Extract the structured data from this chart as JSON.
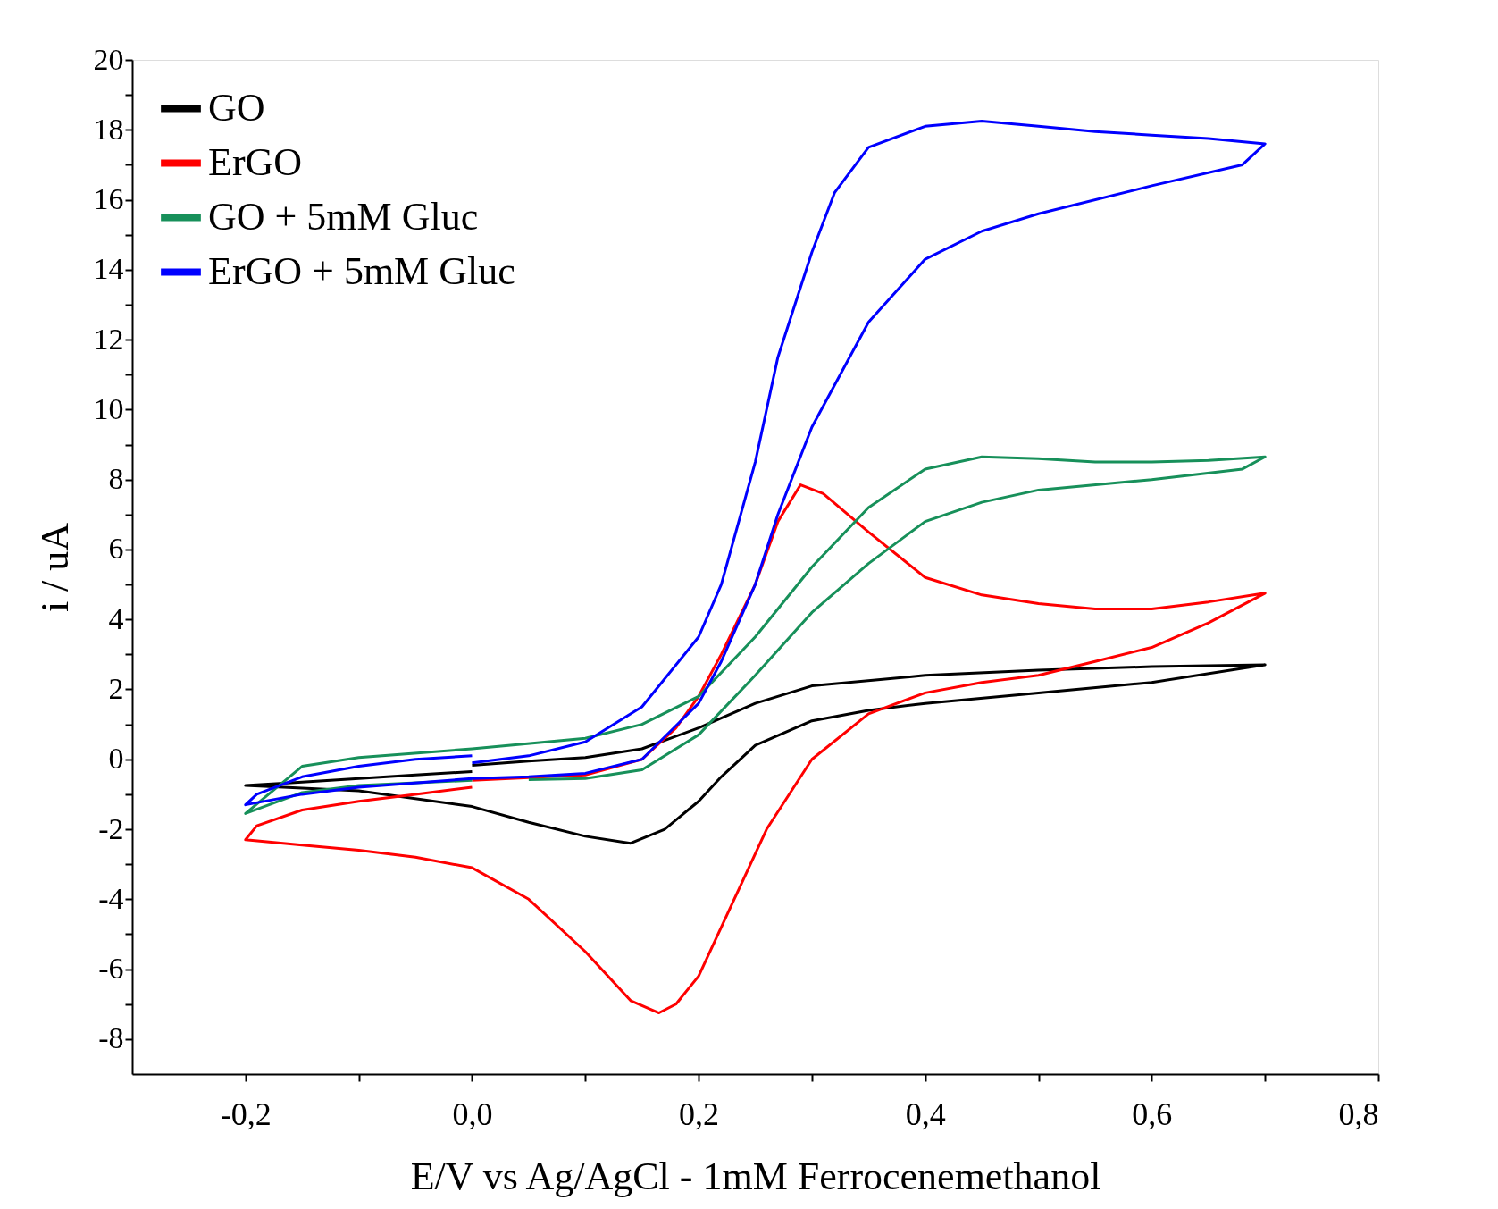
{
  "chart_data": {
    "type": "line",
    "xlabel": "E/V vs Ag/AgCl - 1mM Ferrocenemethanol",
    "ylabel": "i / uA",
    "xlim": [
      -0.3,
      0.8
    ],
    "ylim": [
      -9,
      20
    ],
    "xticks": [
      {
        "value": -0.2,
        "label": "-0,2"
      },
      {
        "value": -0.1,
        "label": null
      },
      {
        "value": 0.0,
        "label": "0,0"
      },
      {
        "value": 0.1,
        "label": null
      },
      {
        "value": 0.2,
        "label": "0,2"
      },
      {
        "value": 0.3,
        "label": null
      },
      {
        "value": 0.4,
        "label": "0,4"
      },
      {
        "value": 0.5,
        "label": null
      },
      {
        "value": 0.6,
        "label": "0,6"
      },
      {
        "value": 0.7,
        "label": null
      },
      {
        "value": 0.8,
        "label": "0,8"
      }
    ],
    "yticks": [
      -8,
      {
        "value": -7,
        "label": null
      },
      -6,
      {
        "value": -5,
        "label": null
      },
      -4,
      {
        "value": -3,
        "label": null
      },
      -2,
      {
        "value": -1,
        "label": null
      },
      0,
      {
        "value": 1,
        "label": null
      },
      2,
      {
        "value": 3,
        "label": null
      },
      4,
      {
        "value": 5,
        "label": null
      },
      6,
      {
        "value": 7,
        "label": null
      },
      8,
      {
        "value": 9,
        "label": null
      },
      10,
      {
        "value": 11,
        "label": null
      },
      12,
      {
        "value": 13,
        "label": null
      },
      14,
      {
        "value": 15,
        "label": null
      },
      16,
      {
        "value": 17,
        "label": null
      },
      18,
      {
        "value": 19,
        "label": null
      },
      20
    ],
    "grid": false,
    "legend": "top left",
    "marker": "none",
    "line_style": "solid",
    "series": [
      {
        "name": "GO",
        "color": "#000000",
        "x": [
          0.0,
          0.05,
          0.1,
          0.15,
          0.2,
          0.25,
          0.3,
          0.4,
          0.5,
          0.6,
          0.7,
          0.6,
          0.5,
          0.4,
          0.35,
          0.3,
          0.25,
          0.22,
          0.2,
          0.17,
          0.14,
          0.1,
          0.05,
          0.0,
          -0.1,
          -0.2,
          -0.15,
          -0.1,
          -0.05,
          0.0
        ],
        "values": [
          -0.17,
          -0.05,
          0.05,
          0.3,
          0.9,
          1.6,
          2.1,
          2.4,
          2.55,
          2.65,
          2.7,
          2.2,
          1.9,
          1.6,
          1.4,
          1.1,
          0.4,
          -0.5,
          -1.2,
          -2.0,
          -2.4,
          -2.2,
          -1.8,
          -1.35,
          -0.9,
          -0.75,
          -0.65,
          -0.55,
          -0.45,
          -0.35
        ]
      },
      {
        "name": "ErGO",
        "color": "#ff0000",
        "x": [
          0.0,
          0.1,
          0.15,
          0.18,
          0.2,
          0.22,
          0.25,
          0.27,
          0.29,
          0.31,
          0.35,
          0.4,
          0.45,
          0.5,
          0.55,
          0.6,
          0.65,
          0.7,
          0.65,
          0.6,
          0.55,
          0.5,
          0.45,
          0.4,
          0.35,
          0.3,
          0.26,
          0.22,
          0.2,
          0.18,
          0.165,
          0.14,
          0.1,
          0.05,
          0.0,
          -0.05,
          -0.1,
          -0.15,
          -0.2,
          -0.19,
          -0.15,
          -0.1,
          -0.05,
          0.0
        ],
        "values": [
          -0.6,
          -0.45,
          0.0,
          0.9,
          1.8,
          3.0,
          5.0,
          6.8,
          7.85,
          7.6,
          6.5,
          5.2,
          4.7,
          4.45,
          4.3,
          4.3,
          4.5,
          4.75,
          3.9,
          3.2,
          2.8,
          2.4,
          2.2,
          1.9,
          1.3,
          0.0,
          -2.0,
          -4.8,
          -6.2,
          -7.0,
          -7.25,
          -6.9,
          -5.5,
          -4.0,
          -3.1,
          -2.8,
          -2.6,
          -2.45,
          -2.3,
          -1.9,
          -1.45,
          -1.2,
          -1.0,
          -0.8
        ]
      },
      {
        "name": "GO + 5mM Gluc",
        "color": "#17905a",
        "x": [
          0.0,
          -0.1,
          -0.15,
          -0.2,
          -0.15,
          -0.1,
          0.0,
          0.1,
          0.15,
          0.2,
          0.25,
          0.3,
          0.35,
          0.4,
          0.45,
          0.5,
          0.55,
          0.6,
          0.65,
          0.7,
          0.68,
          0.6,
          0.5,
          0.45,
          0.4,
          0.35,
          0.3,
          0.25,
          0.2,
          0.15,
          0.1,
          0.05
        ],
        "values": [
          -0.6,
          -0.75,
          -0.95,
          -1.55,
          -0.2,
          0.05,
          0.3,
          0.6,
          1.0,
          1.8,
          3.5,
          5.5,
          7.2,
          8.3,
          8.65,
          8.6,
          8.5,
          8.5,
          8.55,
          8.65,
          8.3,
          8.0,
          7.7,
          7.35,
          6.8,
          5.6,
          4.2,
          2.4,
          0.7,
          -0.3,
          -0.55,
          -0.58
        ]
      },
      {
        "name": "ErGO + 5mM Gluc",
        "color": "#0000ff",
        "x": [
          0.0,
          0.05,
          0.1,
          0.15,
          0.2,
          0.22,
          0.25,
          0.27,
          0.3,
          0.32,
          0.35,
          0.4,
          0.45,
          0.5,
          0.55,
          0.6,
          0.65,
          0.7,
          0.68,
          0.6,
          0.5,
          0.45,
          0.4,
          0.35,
          0.3,
          0.27,
          0.25,
          0.22,
          0.2,
          0.15,
          0.1,
          0.05,
          0.0,
          -0.1,
          -0.15,
          -0.2,
          -0.19,
          -0.15,
          -0.1,
          -0.05,
          0.0
        ],
        "values": [
          -0.1,
          0.1,
          0.5,
          1.5,
          3.5,
          5.0,
          8.5,
          11.5,
          14.5,
          16.2,
          17.5,
          18.1,
          18.25,
          18.1,
          17.95,
          17.85,
          17.75,
          17.6,
          17.0,
          16.4,
          15.6,
          15.1,
          14.3,
          12.5,
          9.5,
          7.0,
          5.0,
          2.8,
          1.6,
          0.0,
          -0.4,
          -0.5,
          -0.55,
          -0.8,
          -1.0,
          -1.3,
          -1.0,
          -0.5,
          -0.2,
          0.0,
          0.1
        ]
      }
    ]
  }
}
